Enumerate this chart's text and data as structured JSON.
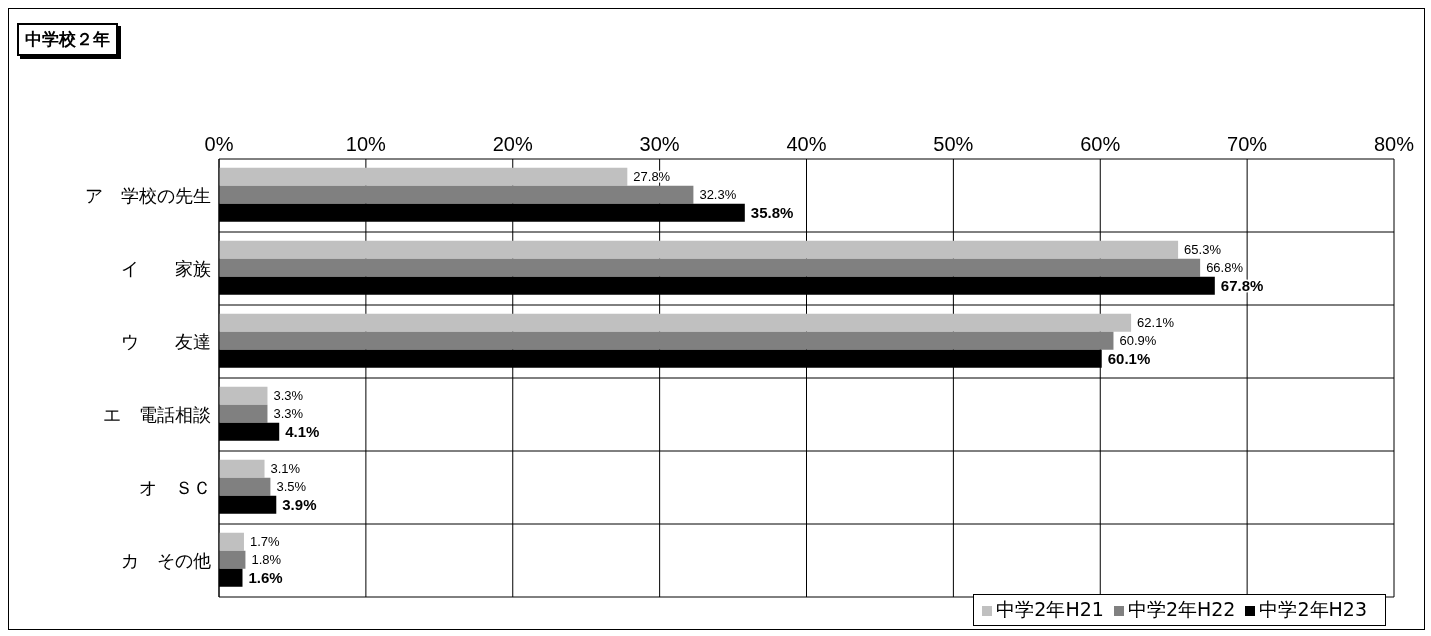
{
  "chart_data": {
    "type": "bar",
    "orientation": "horizontal",
    "title": "中学校２年",
    "categories": [
      "ア　学校の先生",
      "イ　　家族",
      "ウ　　友達",
      "エ　電話相談",
      "オ　ＳＣ",
      "カ　その他"
    ],
    "series": [
      {
        "name": "中学2年H21",
        "color": "#c0c0c0",
        "values": [
          27.8,
          65.3,
          62.1,
          3.3,
          3.1,
          1.7
        ]
      },
      {
        "name": "中学2年H22",
        "color": "#808080",
        "values": [
          32.3,
          66.8,
          60.9,
          3.3,
          3.5,
          1.8
        ]
      },
      {
        "name": "中学2年H23",
        "color": "#000000",
        "values": [
          35.8,
          67.8,
          60.1,
          4.1,
          3.9,
          1.6
        ]
      }
    ],
    "value_labels": [
      [
        "27.8%",
        "65.3%",
        "62.1%",
        "3.3%",
        "3.1%",
        "1.7%"
      ],
      [
        "32.3%",
        "66.8%",
        "60.9%",
        "3.3%",
        "3.5%",
        "1.8%"
      ],
      [
        "35.8%",
        "67.8%",
        "60.1%",
        "4.1%",
        "3.9%",
        "1.6%"
      ]
    ],
    "xlim": [
      0,
      80
    ],
    "xticks": [
      {
        "value": 0,
        "label": "0%"
      },
      {
        "value": 10,
        "label": "10%"
      },
      {
        "value": 20,
        "label": "20%"
      },
      {
        "value": 30,
        "label": "30%"
      },
      {
        "value": 40,
        "label": "40%"
      },
      {
        "value": 50,
        "label": "50%"
      },
      {
        "value": 60,
        "label": "60%"
      },
      {
        "value": 70,
        "label": "70%"
      },
      {
        "value": 80,
        "label": "80%"
      }
    ],
    "grid": true,
    "legend": "bottom right"
  }
}
